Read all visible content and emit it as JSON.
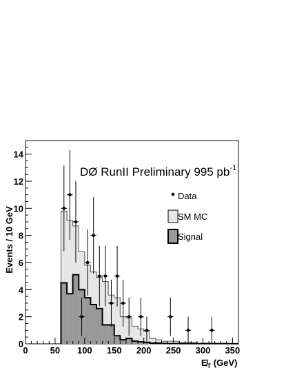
{
  "chart_data": {
    "type": "bar",
    "title": "DØ RunII Preliminary 995 pb",
    "title_superscript": "-1",
    "xlabel": "E_T (GeV)",
    "xlabel_prefix": "E̸",
    "xlabel_sub": "T",
    "xlabel_suffix": " (GeV)",
    "ylabel": "Events / 10 GeV",
    "xlim": [
      0,
      360
    ],
    "ylim": [
      0,
      15
    ],
    "x_ticks": [
      0,
      50,
      100,
      150,
      200,
      250,
      300,
      350
    ],
    "y_ticks": [
      0,
      2,
      4,
      6,
      8,
      10,
      12,
      14
    ],
    "legend_position": "top-right",
    "bin_width": 10,
    "series": [
      {
        "name": "SM MC",
        "kind": "histogram",
        "fill": "#e6e6e6",
        "bin_edges": [
          60,
          70,
          80,
          90,
          100,
          110,
          120,
          130,
          140,
          150,
          160,
          170,
          180,
          190,
          200,
          210,
          220,
          230,
          240,
          250,
          260,
          270,
          280,
          290,
          300,
          310,
          320,
          330,
          340,
          350
        ],
        "values": [
          9.8,
          9.1,
          8.7,
          6.8,
          5.8,
          5.3,
          4.9,
          4.6,
          3.6,
          3.4,
          2.0,
          1.9,
          1.3,
          1.1,
          0.9,
          0.4,
          0.3,
          0.2,
          0.2,
          0.2,
          0.1,
          0.1,
          0.1,
          0.05,
          0.05,
          0.05,
          0.03,
          0.03,
          0.02
        ]
      },
      {
        "name": "Signal",
        "kind": "histogram",
        "fill": "#999999",
        "bin_edges": [
          60,
          70,
          80,
          90,
          100,
          110,
          120,
          130,
          140,
          150,
          160,
          170,
          180,
          190,
          200,
          210,
          220,
          230,
          240,
          250,
          260,
          270,
          280,
          290,
          300,
          310,
          320,
          330,
          340,
          350
        ],
        "values": [
          4.5,
          3.7,
          5.1,
          4.0,
          3.4,
          2.9,
          2.6,
          1.4,
          1.4,
          0.6,
          0.3,
          0.4,
          0.2,
          0.15,
          0.1,
          0.05,
          0.05,
          0.03,
          0.02,
          0.02,
          0.01,
          0.01,
          0.01,
          0.01,
          0.01,
          0.01,
          0.01,
          0.01,
          0.01
        ]
      },
      {
        "name": "Data",
        "kind": "points",
        "x": [
          65,
          75,
          85,
          95,
          105,
          115,
          125,
          135,
          145,
          155,
          165,
          175,
          195,
          205,
          245,
          275,
          315
        ],
        "y": [
          10,
          11,
          9,
          2,
          6,
          8,
          5,
          5,
          3,
          5,
          3,
          2,
          2,
          1,
          2,
          1,
          1
        ]
      }
    ]
  }
}
